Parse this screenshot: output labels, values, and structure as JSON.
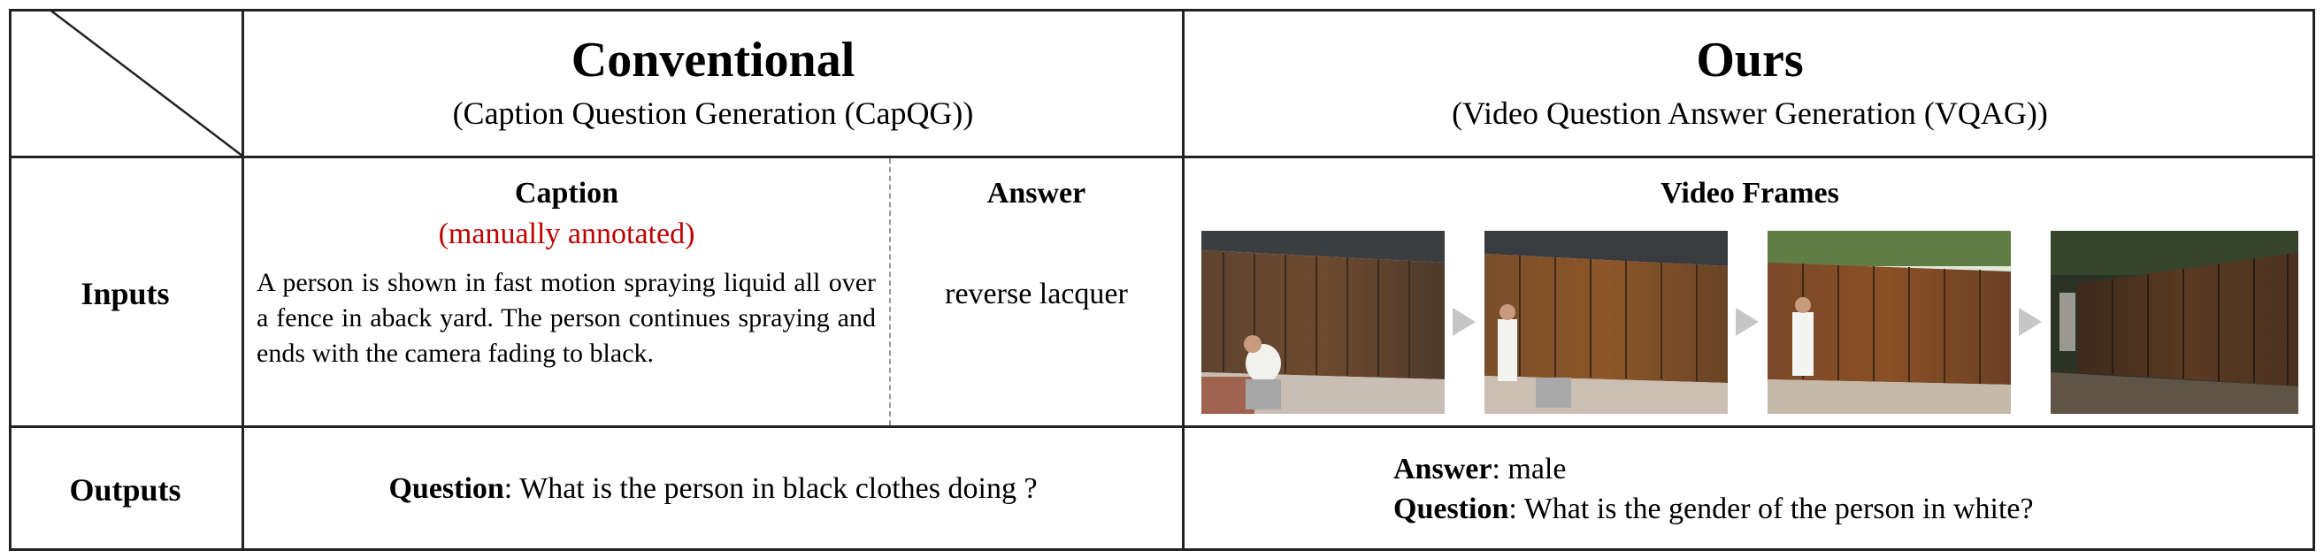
{
  "header": {
    "conventional_title": "Conventional",
    "conventional_subtitle": "(Caption Question Generation (CapQG))",
    "ours_title": "Ours",
    "ours_subtitle": "(Video Question Answer Generation (VQAG))"
  },
  "rows": {
    "inputs_label": "Inputs",
    "outputs_label": "Outputs"
  },
  "conventional_inputs": {
    "caption_heading": "Caption",
    "caption_note": "(manually annotated)",
    "caption_text": "A person is shown in fast motion spraying liquid all over a fence in aback yard. The person continues spraying and ends with the camera fading to black.",
    "answer_heading": "Answer",
    "answer_text": "reverse lacquer"
  },
  "ours_inputs": {
    "frames_heading": "Video Frames"
  },
  "conventional_outputs": {
    "question_label": "Question",
    "question_text": ": What is the person in black clothes doing ?"
  },
  "ours_outputs": {
    "answer_label": "Answer",
    "answer_text": ": male",
    "question_label": "Question",
    "question_text": ": What is the gender of the person in white?"
  },
  "colors": {
    "annotation_note": "#c00000",
    "border": "#222222",
    "arrow": "#c6c6c6"
  }
}
